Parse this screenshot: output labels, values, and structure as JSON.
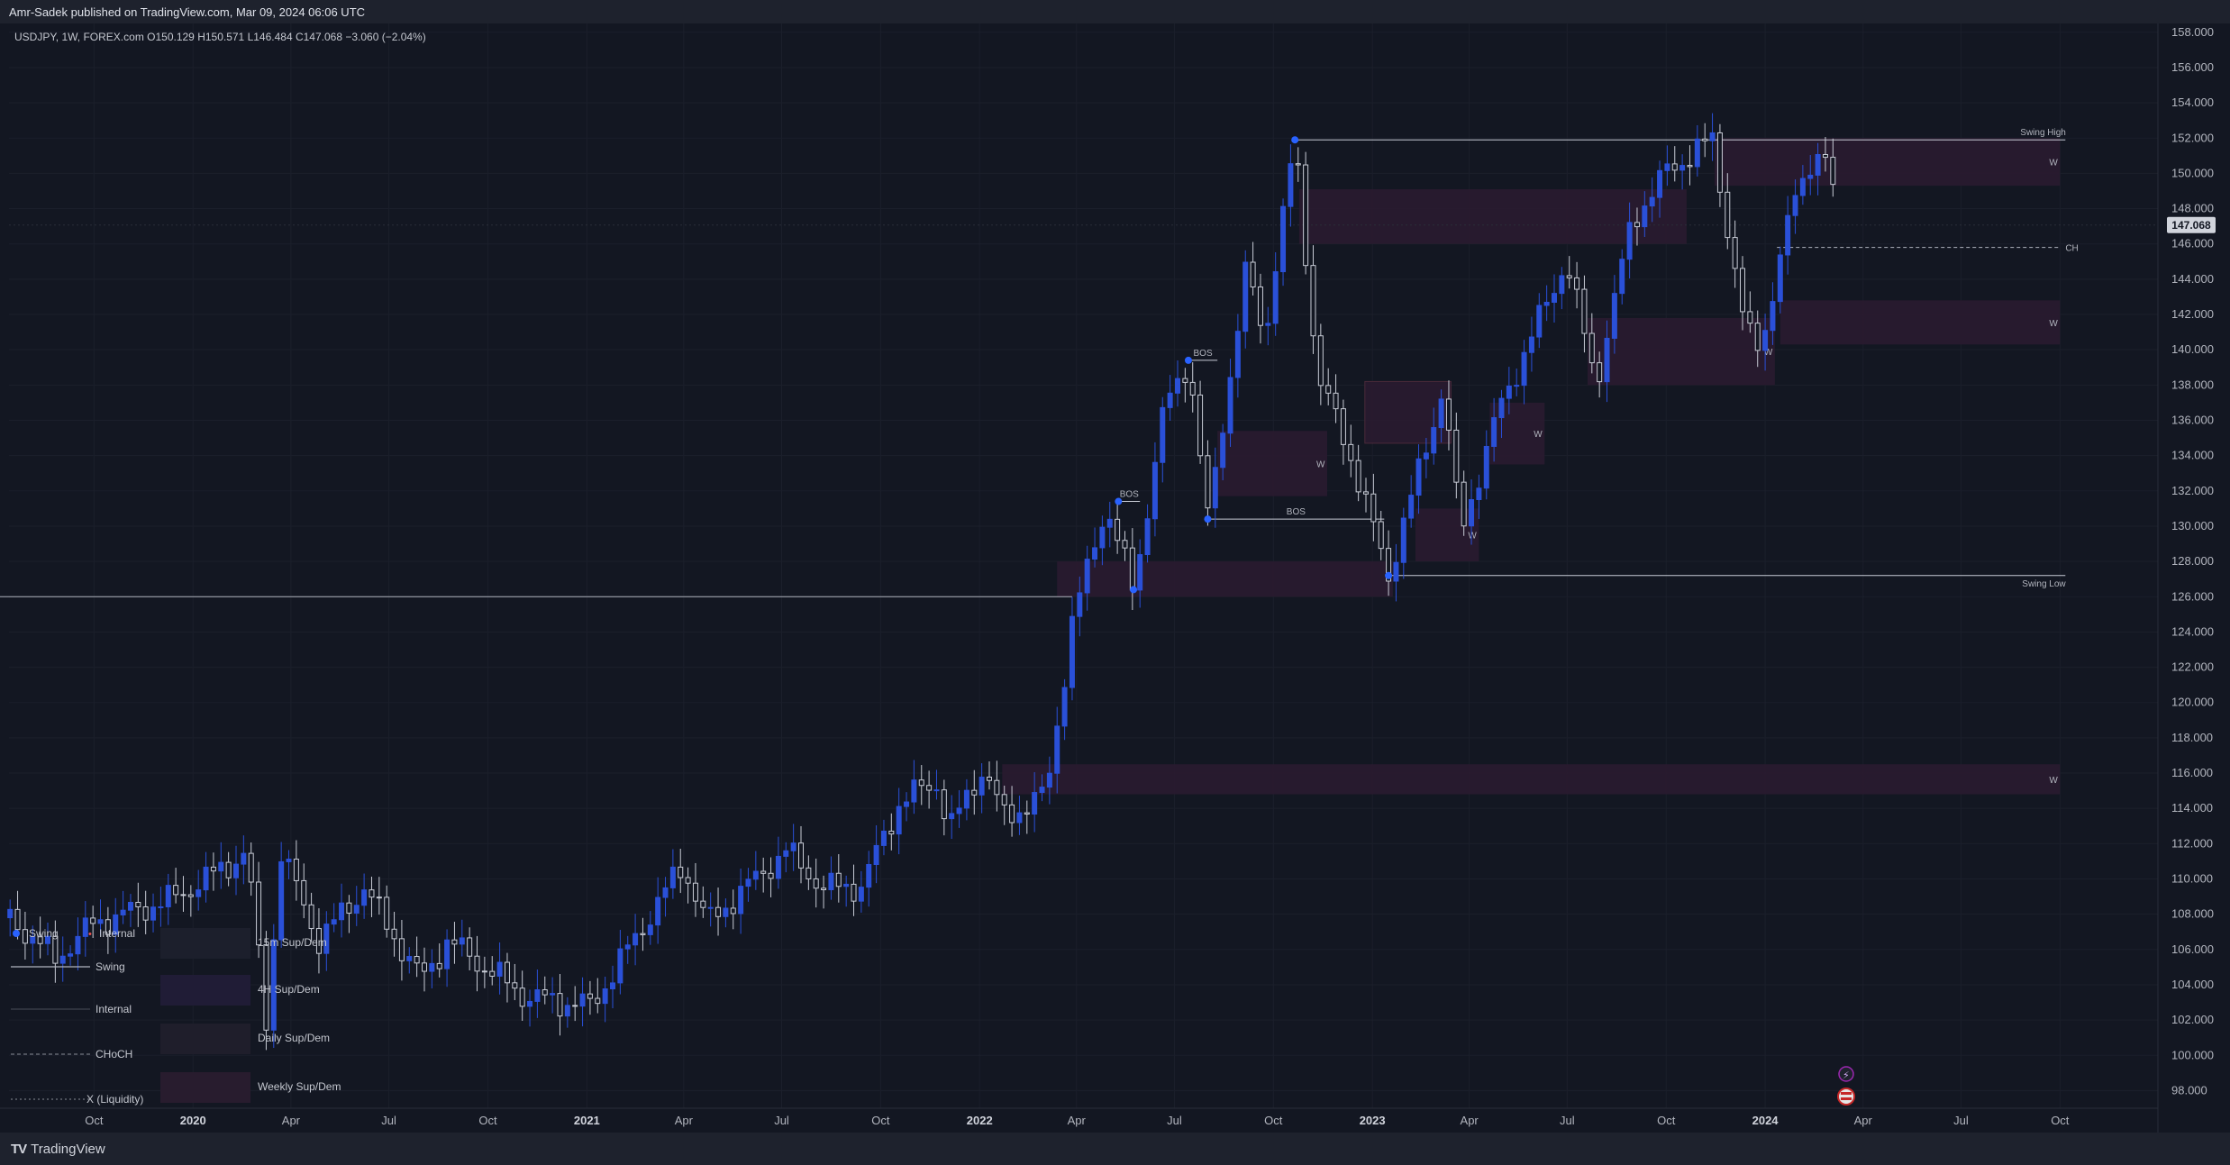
{
  "header": {
    "published": "Amr-Sadek published on TradingView.com, Mar 09, 2024 06:06 UTC"
  },
  "symbol_line": "USDJPY, 1W, FOREX.com  O150.129  H150.571  L146.484  C147.068  −3.060 (−2.04%)",
  "footer": {
    "brand": "TradingView",
    "logo": "TV"
  },
  "colors": {
    "background": "#131722",
    "bull": "#2a50d8",
    "bear": "#c8ccd6",
    "zone": "#2a1b30",
    "grid": "#1b1f2b",
    "price_badge": "#d1d4dc"
  },
  "chart_data": {
    "type": "candlestick",
    "symbol": "USDJPY",
    "timeframe": "1W",
    "ohlc_last": {
      "open": 150.129,
      "high": 150.571,
      "low": 146.484,
      "close": 147.068,
      "change": -3.06,
      "change_pct": -2.04
    },
    "current_price": "147.068",
    "y_axis": {
      "range": [
        97.0,
        158.5
      ],
      "ticks": [
        "158.000",
        "156.000",
        "154.000",
        "152.000",
        "150.000",
        "148.000",
        "146.000",
        "144.000",
        "142.000",
        "140.000",
        "138.000",
        "136.000",
        "134.000",
        "132.000",
        "130.000",
        "128.000",
        "126.000",
        "124.000",
        "122.000",
        "120.000",
        "118.000",
        "116.000",
        "114.000",
        "112.000",
        "110.000",
        "108.000",
        "106.000",
        "104.000",
        "102.000",
        "100.000",
        "98.000"
      ]
    },
    "x_axis": {
      "range": [
        "2019-07-14",
        "2024-12-31"
      ],
      "ticks": [
        {
          "date": "2019-10-01",
          "label": "Oct",
          "year": false
        },
        {
          "date": "2020-01-01",
          "label": "2020",
          "year": true
        },
        {
          "date": "2020-04-01",
          "label": "Apr",
          "year": false
        },
        {
          "date": "2020-07-01",
          "label": "Jul",
          "year": false
        },
        {
          "date": "2020-10-01",
          "label": "Oct",
          "year": false
        },
        {
          "date": "2021-01-01",
          "label": "2021",
          "year": true
        },
        {
          "date": "2021-04-01",
          "label": "Apr",
          "year": false
        },
        {
          "date": "2021-07-01",
          "label": "Jul",
          "year": false
        },
        {
          "date": "2021-10-01",
          "label": "Oct",
          "year": false
        },
        {
          "date": "2022-01-01",
          "label": "2022",
          "year": true
        },
        {
          "date": "2022-04-01",
          "label": "Apr",
          "year": false
        },
        {
          "date": "2022-07-01",
          "label": "Jul",
          "year": false
        },
        {
          "date": "2022-10-01",
          "label": "Oct",
          "year": false
        },
        {
          "date": "2023-01-01",
          "label": "2023",
          "year": true
        },
        {
          "date": "2023-04-01",
          "label": "Apr",
          "year": false
        },
        {
          "date": "2023-07-01",
          "label": "Jul",
          "year": false
        },
        {
          "date": "2023-10-01",
          "label": "Oct",
          "year": false
        },
        {
          "date": "2024-01-01",
          "label": "2024",
          "year": true
        },
        {
          "date": "2024-04-01",
          "label": "Apr",
          "year": false
        },
        {
          "date": "2024-07-01",
          "label": "Jul",
          "year": false
        },
        {
          "date": "2024-10-01",
          "label": "Oct",
          "year": false
        }
      ]
    },
    "anchors": [
      [
        "2019-07-15",
        107.8
      ],
      [
        "2019-08-26",
        105.5
      ],
      [
        "2019-10-01",
        107.5
      ],
      [
        "2019-12-10",
        108.8
      ],
      [
        "2020-01-13",
        110.0
      ],
      [
        "2020-02-20",
        111.5
      ],
      [
        "2020-03-09",
        102.0
      ],
      [
        "2020-03-23",
        111.5
      ],
      [
        "2020-04-27",
        106.5
      ],
      [
        "2020-06-08",
        109.5
      ],
      [
        "2020-07-31",
        104.3
      ],
      [
        "2020-08-25",
        106.5
      ],
      [
        "2020-11-06",
        103.3
      ],
      [
        "2021-01-05",
        102.8
      ],
      [
        "2021-03-31",
        110.8
      ],
      [
        "2021-04-23",
        107.5
      ],
      [
        "2021-07-05",
        111.6
      ],
      [
        "2021-08-09",
        109.5
      ],
      [
        "2021-09-13",
        109.6
      ],
      [
        "2021-10-20",
        114.5
      ],
      [
        "2021-11-24",
        115.5
      ],
      [
        "2021-12-03",
        112.7
      ],
      [
        "2022-01-04",
        116.3
      ],
      [
        "2022-01-24",
        113.5
      ],
      [
        "2022-03-04",
        114.8
      ],
      [
        "2022-03-28",
        124.5
      ],
      [
        "2022-04-28",
        131.2
      ],
      [
        "2022-05-24",
        126.4
      ],
      [
        "2022-06-22",
        136.8
      ],
      [
        "2022-07-14",
        139.4
      ],
      [
        "2022-08-01",
        130.4
      ],
      [
        "2022-09-07",
        144.9
      ],
      [
        "2022-09-22",
        140.5
      ],
      [
        "2022-10-21",
        151.9
      ],
      [
        "2022-11-11",
        138.5
      ],
      [
        "2022-12-09",
        134.5
      ],
      [
        "2023-01-16",
        127.2
      ],
      [
        "2023-03-08",
        137.9
      ],
      [
        "2023-03-24",
        129.6
      ],
      [
        "2023-04-28",
        136.5
      ],
      [
        "2023-05-30",
        140.9
      ],
      [
        "2023-06-30",
        145.1
      ],
      [
        "2023-07-28",
        138.1
      ],
      [
        "2023-08-30",
        147.3
      ],
      [
        "2023-10-03",
        150.2
      ],
      [
        "2023-11-13",
        151.9
      ],
      [
        "2023-12-14",
        140.9
      ],
      [
        "2023-12-28",
        140.3
      ],
      [
        "2024-01-29",
        148.8
      ],
      [
        "2024-02-13",
        150.9
      ],
      [
        "2024-02-29",
        150.6
      ],
      [
        "2024-03-08",
        147.07
      ]
    ],
    "zones": [
      {
        "from": "2022-03-14",
        "to": "2023-01-20",
        "low": 126.0,
        "high": 128.0
      },
      {
        "from": "2022-01-22",
        "to": "2024-10-01",
        "low": 114.8,
        "high": 116.5,
        "label": "W"
      },
      {
        "from": "2022-08-10",
        "to": "2022-11-20",
        "low": 131.7,
        "high": 135.4,
        "label": "W"
      },
      {
        "from": "2022-10-25",
        "to": "2023-10-20",
        "low": 146.0,
        "high": 149.1
      },
      {
        "from": "2022-12-25",
        "to": "2023-03-15",
        "low": 134.7,
        "high": 138.2
      },
      {
        "from": "2023-02-10",
        "to": "2023-04-10",
        "low": 128.0,
        "high": 131.0,
        "label": "W"
      },
      {
        "from": "2023-04-20",
        "to": "2023-06-10",
        "low": 133.5,
        "high": 137.0,
        "label": "W"
      },
      {
        "from": "2023-07-20",
        "to": "2024-01-10",
        "low": 138.0,
        "high": 141.8,
        "label": "W"
      },
      {
        "from": "2024-01-15",
        "to": "2024-10-01",
        "low": 140.3,
        "high": 142.8,
        "label": "W"
      },
      {
        "from": "2023-11-15",
        "to": "2024-10-01",
        "low": 149.3,
        "high": 152.0,
        "label": "W"
      }
    ],
    "swing_high": {
      "label": "Swing High",
      "from": "2022-10-21",
      "to": "2024-10-06",
      "price": 151.9
    },
    "swing_low": {
      "label": "Swing Low",
      "from": "2023-01-16",
      "to": "2024-10-06",
      "price": 127.2
    },
    "long_line": {
      "from": "2019-07-01",
      "to": "2022-03-28",
      "price": 126.0
    },
    "choch": {
      "label": "CH",
      "from": "2024-01-12",
      "to": "2024-10-01",
      "price": 145.8
    },
    "bos": [
      {
        "label": "BOS",
        "from": "2022-05-10",
        "to": "2022-05-30",
        "price": 131.4
      },
      {
        "label": "BOS",
        "from": "2022-07-14",
        "to": "2022-08-10",
        "price": 139.4
      },
      {
        "label": "BOS",
        "from": "2022-08-01",
        "to": "2023-01-12",
        "price": 130.4
      }
    ],
    "swing_points": [
      {
        "date": "2022-05-10",
        "price": 131.4
      },
      {
        "date": "2022-05-24",
        "price": 126.4
      },
      {
        "date": "2022-07-14",
        "price": 139.4
      },
      {
        "date": "2022-08-01",
        "price": 130.4
      },
      {
        "date": "2022-10-21",
        "price": 151.9
      },
      {
        "date": "2023-01-16",
        "price": 127.2
      }
    ],
    "legend": {
      "items": [
        {
          "label": "Swing",
          "style": "dot"
        },
        {
          "label": "Internal",
          "style": "dot-small"
        },
        {
          "label": "Swing",
          "style": "solid"
        },
        {
          "label": "Internal",
          "style": "thin"
        },
        {
          "label": "CHoCH",
          "style": "dashed"
        },
        {
          "label": "X (Liquidity)",
          "style": "dotted"
        }
      ],
      "zones": [
        {
          "label": "15m Sup/Dem",
          "color": "#1c1f2c"
        },
        {
          "label": "4H Sup/Dem",
          "color": "#201c36"
        },
        {
          "label": "Daily Sup/Dem",
          "color": "#1f1e2b"
        },
        {
          "label": "Weekly Sup/Dem",
          "color": "#281c2e"
        }
      ]
    }
  }
}
